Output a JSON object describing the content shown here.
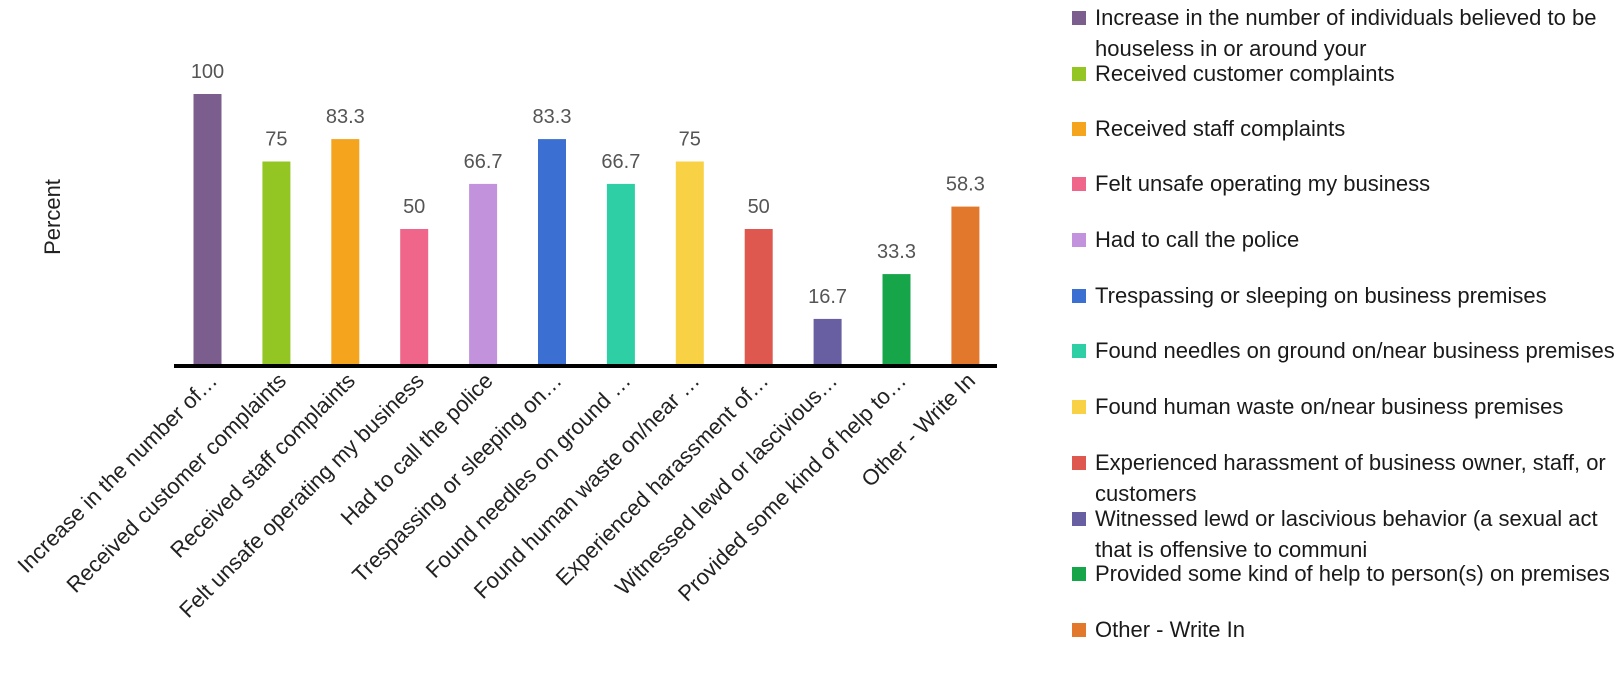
{
  "chart_data": {
    "type": "bar",
    "ylabel": "Percent",
    "xlabel": "",
    "ylim": [
      0,
      100
    ],
    "grid": false,
    "legend_position": "right",
    "categories": [
      "Increase in the number of…",
      "Received customer complaints",
      "Received staff complaints",
      "Felt unsafe operating my business",
      "Had to call the police",
      "Trespassing or sleeping on…",
      "Found needles on ground …",
      "Found human waste on/near …",
      "Experienced harassment of…",
      "Witnessed lewd or lascivious…",
      "Provided some kind of help to…",
      "Other - Write In"
    ],
    "values": [
      100,
      75,
      83.3,
      50,
      66.7,
      83.3,
      66.7,
      75,
      50,
      16.7,
      33.3,
      58.3
    ],
    "data_labels": [
      "100",
      "75",
      "83.3",
      "50",
      "66.7",
      "83.3",
      "66.7",
      "75",
      "50",
      "16.7",
      "33.3",
      "58.3"
    ],
    "colors": [
      "#7B5E8E",
      "#93C623",
      "#F5A51D",
      "#F0658A",
      "#C292DC",
      "#3B6FD1",
      "#2ECFA4",
      "#F9D144",
      "#DE5850",
      "#675FA1",
      "#17A549",
      "#E2782B"
    ],
    "legend": [
      "Increase in the number of individuals believed to be houseless in or around your",
      "Received customer complaints",
      "Received staff complaints",
      "Felt unsafe operating my business",
      "Had to call the police",
      "Trespassing or sleeping on business premises",
      "Found needles on ground on/near business premises",
      "Found human waste on/near business premises",
      "Experienced harassment of business owner, staff, or customers",
      "Witnessed lewd or lascivious behavior (a sexual act that is offensive to communi",
      "Provided some kind of help to person(s) on premises",
      "Other - Write In"
    ]
  }
}
